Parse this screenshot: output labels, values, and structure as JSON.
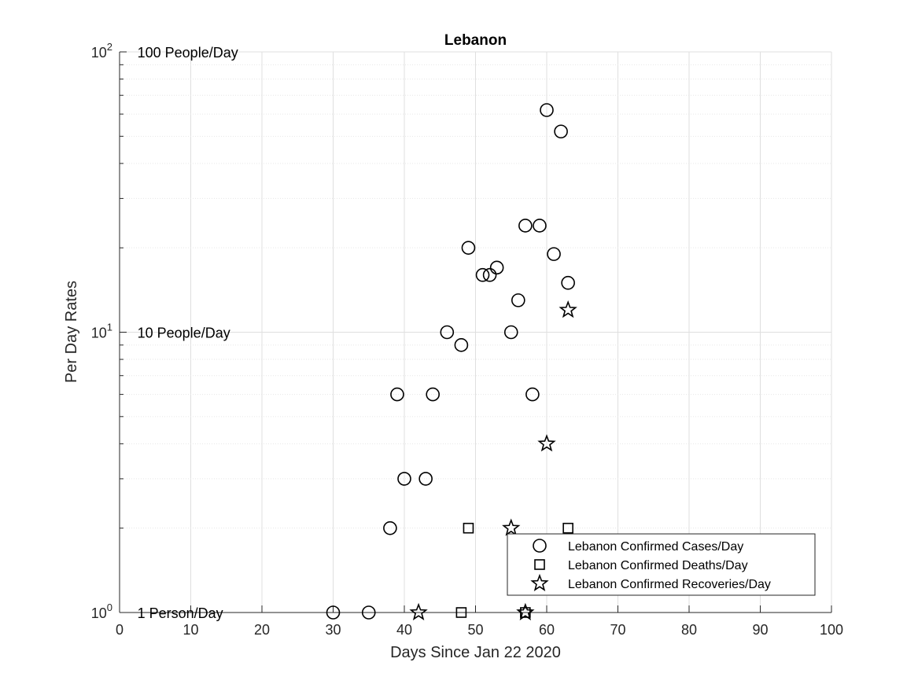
{
  "chart_data": {
    "type": "scatter",
    "title": "Lebanon",
    "xlabel": "Days Since Jan 22 2020",
    "ylabel": "Per Day Rates",
    "xlim": [
      0,
      100
    ],
    "ylim": [
      1,
      100
    ],
    "yscale": "log",
    "grid": true,
    "xticks": [
      0,
      10,
      20,
      30,
      40,
      50,
      60,
      70,
      80,
      90,
      100
    ],
    "yticks": [
      {
        "value": 1,
        "base": "10",
        "exp": "0"
      },
      {
        "value": 10,
        "base": "10",
        "exp": "1"
      },
      {
        "value": 100,
        "base": "10",
        "exp": "2"
      }
    ],
    "annotations": [
      {
        "text": "100 People/Day",
        "x": 2.5,
        "y": 100
      },
      {
        "text": "10 People/Day",
        "x": 2.5,
        "y": 10
      },
      {
        "text": "1 Person/Day",
        "x": 2.5,
        "y": 1
      }
    ],
    "legend_location": "bottom-right",
    "series": [
      {
        "name": "Lebanon Confirmed Cases/Day",
        "marker": "circle",
        "points": [
          {
            "x": 30,
            "y": 1
          },
          {
            "x": 35,
            "y": 1
          },
          {
            "x": 38,
            "y": 2
          },
          {
            "x": 39,
            "y": 6
          },
          {
            "x": 40,
            "y": 3
          },
          {
            "x": 43,
            "y": 3
          },
          {
            "x": 44,
            "y": 6
          },
          {
            "x": 46,
            "y": 10
          },
          {
            "x": 48,
            "y": 9
          },
          {
            "x": 49,
            "y": 20
          },
          {
            "x": 51,
            "y": 16
          },
          {
            "x": 52,
            "y": 16
          },
          {
            "x": 53,
            "y": 17
          },
          {
            "x": 55,
            "y": 10
          },
          {
            "x": 56,
            "y": 13
          },
          {
            "x": 57,
            "y": 24
          },
          {
            "x": 58,
            "y": 6
          },
          {
            "x": 59,
            "y": 24
          },
          {
            "x": 60,
            "y": 62
          },
          {
            "x": 61,
            "y": 19
          },
          {
            "x": 62,
            "y": 52
          },
          {
            "x": 63,
            "y": 15
          }
        ]
      },
      {
        "name": "Lebanon Confirmed Deaths/Day",
        "marker": "square",
        "points": [
          {
            "x": 48,
            "y": 1
          },
          {
            "x": 49,
            "y": 2
          },
          {
            "x": 57,
            "y": 1
          },
          {
            "x": 63,
            "y": 2
          }
        ]
      },
      {
        "name": "Lebanon Confirmed Recoveries/Day",
        "marker": "star",
        "points": [
          {
            "x": 42,
            "y": 1
          },
          {
            "x": 55,
            "y": 2
          },
          {
            "x": 57,
            "y": 1
          },
          {
            "x": 60,
            "y": 4
          },
          {
            "x": 63,
            "y": 12
          }
        ]
      }
    ]
  }
}
